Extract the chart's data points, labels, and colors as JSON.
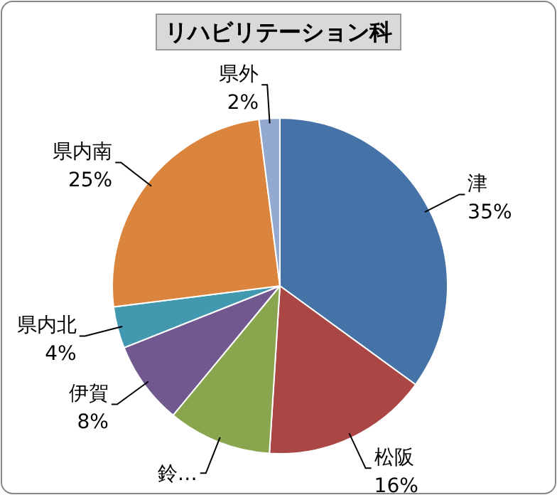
{
  "chart_data": {
    "type": "pie",
    "title": "リハビリテーション科",
    "categories": [
      "津",
      "松阪",
      "鈴…",
      "伊賀",
      "県内北",
      "県内南",
      "県外"
    ],
    "values": [
      35,
      16,
      10,
      8,
      4,
      25,
      2
    ],
    "colors": [
      "#4572a7",
      "#aa4643",
      "#89a54e",
      "#71588f",
      "#4198af",
      "#db843d",
      "#93a9cf"
    ],
    "value_labels": [
      "35%",
      "16%",
      null,
      "8%",
      "4%",
      "25%",
      "2%"
    ]
  }
}
